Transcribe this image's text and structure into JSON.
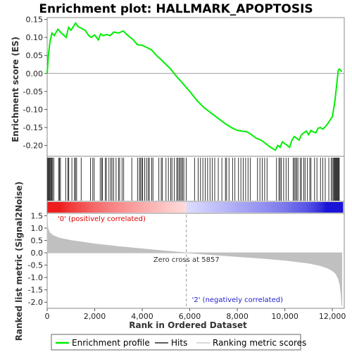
{
  "chart_data": {
    "type": "line",
    "title": "Enrichment plot: HALLMARK_APOPTOSIS",
    "xlabel": "Rank in Ordered Dataset",
    "es_ylabel": "Enrichment score (ES)",
    "metric_ylabel": "Ranked list metric (Signal2Noise)",
    "xlim": [
      0,
      12500
    ],
    "x_ticks": [
      0,
      2000,
      4000,
      6000,
      8000,
      10000,
      12000
    ],
    "x_tick_labels": [
      "0",
      "2,000",
      "4,000",
      "6,000",
      "8,000",
      "10,000",
      "12,000"
    ],
    "es_ylim": [
      -0.23,
      0.155
    ],
    "es_ticks": [
      0.15,
      0.1,
      0.05,
      0.0,
      -0.05,
      -0.1,
      -0.15,
      -0.2
    ],
    "es_tick_labels": [
      "0.15",
      "0.10",
      "0.05",
      "0.00",
      "-0.05",
      "-0.10",
      "-0.15",
      "-0.20"
    ],
    "metric_ylim": [
      -2.25,
      1.6
    ],
    "metric_ticks": [
      1.5,
      1.0,
      0.5,
      0.0,
      -0.5,
      -1.0,
      -1.5,
      -2.0
    ],
    "metric_tick_labels": [
      "1.5",
      "1.0",
      "0.5",
      "0.0",
      "-0.5",
      "-1.0",
      "-1.5",
      "-2.0"
    ],
    "es_profile": {
      "x": [
        0,
        50,
        120,
        200,
        300,
        450,
        600,
        800,
        900,
        1000,
        1100,
        1200,
        1300,
        1450,
        1600,
        1750,
        1850,
        2000,
        2150,
        2250,
        2350,
        2500,
        2650,
        2800,
        3000,
        3200,
        3400,
        3600,
        3800,
        4000,
        4200,
        4400,
        4600,
        4800,
        5000,
        5200,
        5400,
        5600,
        5800,
        6000,
        6300,
        6600,
        6900,
        7200,
        7500,
        7800,
        8000,
        8200,
        8400,
        8600,
        8800,
        9000,
        9200,
        9400,
        9600,
        9700,
        9800,
        9900,
        10000,
        10100,
        10200,
        10300,
        10400,
        10500,
        10600,
        10700,
        10800,
        10900,
        11000,
        11100,
        11200,
        11300,
        11400,
        11500,
        11600,
        11700,
        11800,
        11900,
        12000,
        12050,
        12100,
        12150,
        12200,
        12250,
        12300,
        12400
      ],
      "y": [
        0.0,
        0.05,
        0.09,
        0.112,
        0.105,
        0.123,
        0.112,
        0.1,
        0.128,
        0.12,
        0.13,
        0.14,
        0.13,
        0.125,
        0.12,
        0.105,
        0.1,
        0.107,
        0.093,
        0.11,
        0.105,
        0.108,
        0.105,
        0.115,
        0.112,
        0.118,
        0.105,
        0.095,
        0.08,
        0.078,
        0.072,
        0.065,
        0.05,
        0.038,
        0.025,
        0.012,
        -0.005,
        -0.02,
        -0.035,
        -0.05,
        -0.075,
        -0.095,
        -0.11,
        -0.125,
        -0.14,
        -0.152,
        -0.158,
        -0.16,
        -0.162,
        -0.17,
        -0.18,
        -0.185,
        -0.195,
        -0.205,
        -0.213,
        -0.2,
        -0.205,
        -0.19,
        -0.195,
        -0.2,
        -0.205,
        -0.185,
        -0.175,
        -0.18,
        -0.185,
        -0.17,
        -0.165,
        -0.16,
        -0.17,
        -0.158,
        -0.162,
        -0.165,
        -0.152,
        -0.15,
        -0.155,
        -0.148,
        -0.14,
        -0.13,
        -0.12,
        -0.1,
        -0.08,
        -0.05,
        -0.02,
        0.01,
        0.012,
        0.005
      ]
    },
    "hits": [
      10,
      40,
      70,
      100,
      140,
      170,
      200,
      230,
      280,
      480,
      520,
      560,
      780,
      870,
      910,
      1040,
      1150,
      1190,
      1240,
      1430,
      1820,
      1920,
      1980,
      2230,
      2290,
      2330,
      2450,
      2490,
      2600,
      2680,
      2730,
      2800,
      2900,
      3000,
      3050,
      3150,
      3220,
      3560,
      3800,
      3880,
      3920,
      3980,
      4020,
      4100,
      4180,
      4250,
      4300,
      4400,
      4450,
      4700,
      4800,
      4850,
      5000,
      5100,
      5200,
      5250,
      5350,
      5450,
      5500,
      5550,
      5600,
      5650,
      5700,
      5750,
      5850,
      6200,
      6350,
      6450,
      6550,
      6650,
      6750,
      6850,
      6950,
      7050,
      7200,
      7350,
      7500,
      7550,
      7650,
      7800,
      7900,
      8050,
      8150,
      8250,
      8350,
      8450,
      8550,
      8850,
      8950,
      9050,
      9150,
      9250,
      9650,
      9750,
      9800,
      9850,
      9950,
      10050,
      10150,
      10350,
      10400,
      10450,
      10500,
      10550,
      10650,
      10700,
      10800,
      10850,
      10950,
      11050,
      11100,
      11250,
      11350,
      11500,
      11600,
      11700,
      11850,
      11950,
      12000,
      12050,
      12080,
      12110,
      12140,
      12170,
      12200,
      12230,
      12260,
      12290
    ],
    "metric_profile": {
      "x": [
        0,
        20,
        60,
        120,
        250,
        500,
        1000,
        2000,
        3000,
        4000,
        5000,
        5857,
        7000,
        8000,
        9000,
        10000,
        11000,
        11500,
        11800,
        12000,
        12150,
        12250,
        12320,
        12370,
        12400
      ],
      "y": [
        1.55,
        1.05,
        0.9,
        0.8,
        0.7,
        0.6,
        0.5,
        0.36,
        0.25,
        0.16,
        0.07,
        0.0,
        -0.08,
        -0.15,
        -0.22,
        -0.3,
        -0.42,
        -0.52,
        -0.62,
        -0.72,
        -0.85,
        -1.05,
        -1.3,
        -1.7,
        -2.15
      ]
    },
    "zero_cross_label": "Zero cross at 5857",
    "zero_cross": 5857,
    "pos_label": "'0' (positively correlated)",
    "neg_label": "'2' (negatively correlated)",
    "legend": [
      "Enrichment profile",
      "Hits",
      "Ranking metric scores"
    ],
    "colors": {
      "es_line": "#00ee00",
      "hits": "#000000",
      "metric": "#c0c0c0",
      "pos_text": "#e00000",
      "neg_text": "#2020d0",
      "zero_line": "#999999",
      "heat_red": "#ee1c1c",
      "heat_blue": "#1a14d8"
    }
  }
}
